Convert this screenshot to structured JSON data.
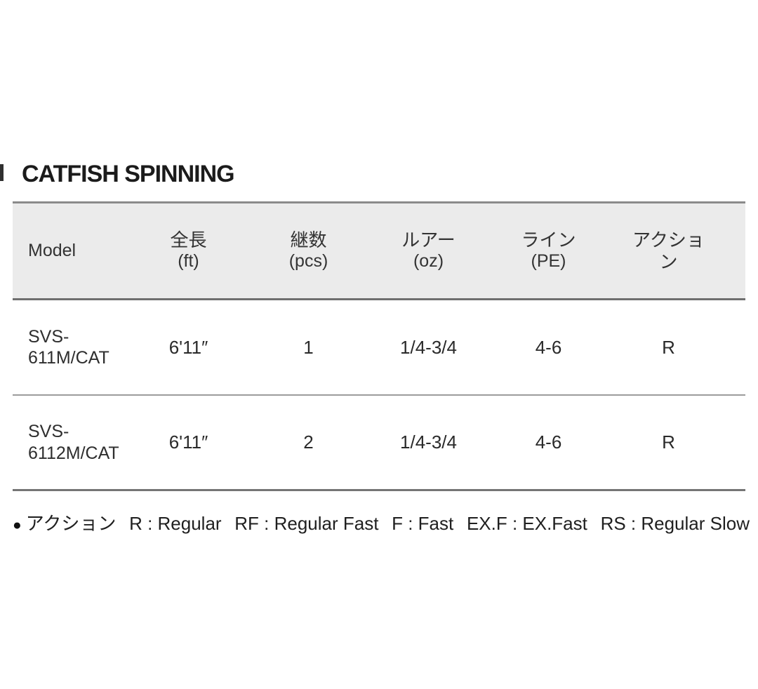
{
  "title": "CATFISH SPINNING",
  "table": {
    "header": {
      "model_label": "Model",
      "columns": [
        {
          "label": "全長",
          "sub": "(ft)"
        },
        {
          "label": "継数",
          "sub": "(pcs)"
        },
        {
          "label": "ルアー",
          "sub": "(oz)"
        },
        {
          "label": "ライン",
          "sub": "(PE)"
        },
        {
          "label": "アクション",
          "sub": ""
        }
      ]
    },
    "rows": [
      {
        "model": "SVS-\n611M/CAT",
        "length": "6'11″",
        "pieces": "1",
        "lure": "1/4-3/4",
        "line": "4-6",
        "action": "R"
      },
      {
        "model": "SVS-\n6112M/CAT",
        "length": "6'11″",
        "pieces": "2",
        "lure": "1/4-3/4",
        "line": "4-6",
        "action": "R"
      }
    ]
  },
  "legend": {
    "bullet": "●",
    "label": "アクション",
    "items": [
      "R : Regular",
      "RF : Regular Fast",
      "F : Fast",
      "EX.F : EX.Fast",
      "RS : Regular Slow"
    ]
  },
  "colors": {
    "header_background": "#ebebeb",
    "heavy_rule": "#757575",
    "light_rule": "#9c9c9c",
    "title_text": "#1b1b1b",
    "body_text": "#2a2a2a"
  }
}
